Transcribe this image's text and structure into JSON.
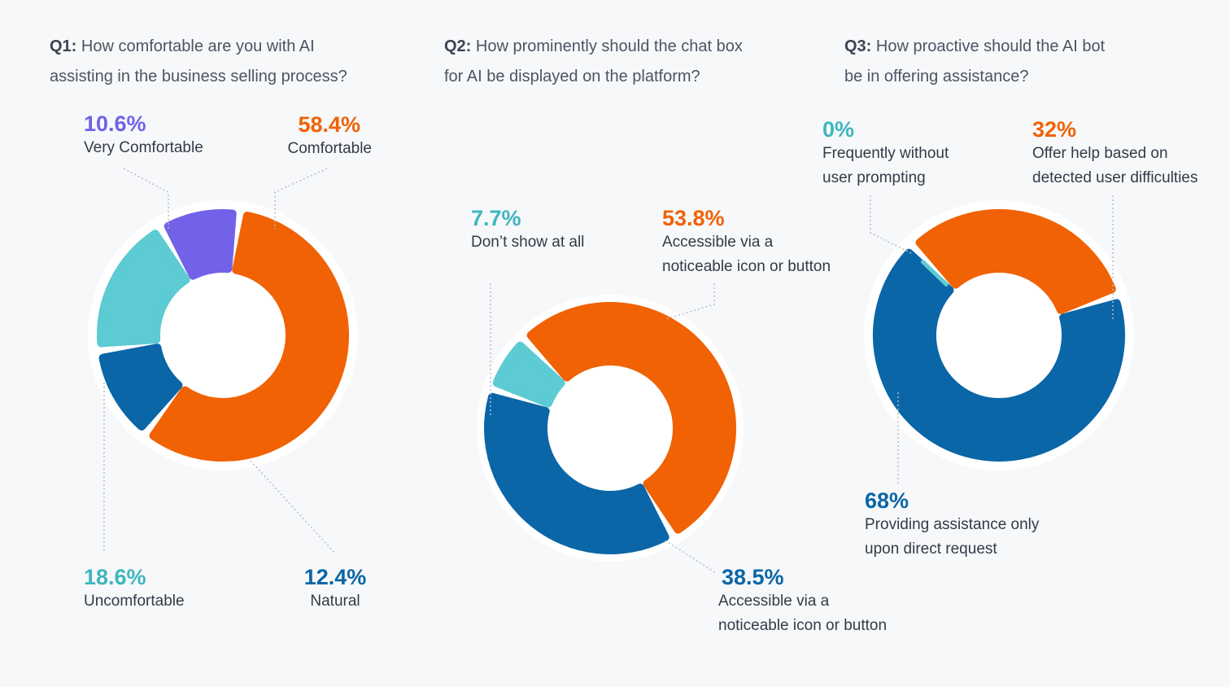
{
  "colors": {
    "orange": "#f06203",
    "blue": "#0a66a7",
    "teal": "#5ccbd3",
    "purple": "#7262e8",
    "ring": "#ffffff",
    "leader": "#b8bec7"
  },
  "questions": [
    {
      "number": "Q1:",
      "text": " How comfortable are you with AI\nassisting in the business selling process?"
    },
    {
      "number": "Q2:",
      "text": " How prominently should the chat box\nfor AI be displayed on the platform?"
    },
    {
      "number": "Q3:",
      "text": " How proactive should the AI bot\nbe in offering assistance?"
    }
  ],
  "chart_data": [
    {
      "type": "pie",
      "title": "Q1: How comfortable are you with AI assisting in the business selling process?",
      "series": [
        {
          "name": "Comfortable",
          "value": 58.4,
          "label": "58.4%",
          "color": "orange"
        },
        {
          "name": "Natural",
          "value": 12.4,
          "label": "12.4%",
          "color": "blue"
        },
        {
          "name": "Uncomfortable",
          "value": 18.6,
          "label": "18.6%",
          "color": "teal"
        },
        {
          "name": "Very Comfortable",
          "value": 10.6,
          "label": "10.6%",
          "color": "purple"
        }
      ]
    },
    {
      "type": "pie",
      "title": "Q2: How prominently should the chat box for AI be displayed on the platform?",
      "series": [
        {
          "name": "Accessible via a\nnoticeable icon or button",
          "value": 53.8,
          "label": "53.8%",
          "color": "orange"
        },
        {
          "name": "Accessible via a\nnoticeable icon or button",
          "value": 38.5,
          "label": "38.5%",
          "color": "blue"
        },
        {
          "name": "Don’t show at all",
          "value": 7.7,
          "label": "7.7%",
          "color": "teal"
        }
      ]
    },
    {
      "type": "pie",
      "title": "Q3: How proactive should the AI bot be in offering assistance?",
      "series": [
        {
          "name": "Offer help based on\ndetected user difficulties",
          "value": 32,
          "label": "32%",
          "color": "orange"
        },
        {
          "name": "Providing assistance only\nupon direct request",
          "value": 68,
          "label": "68%",
          "color": "blue"
        },
        {
          "name": "Frequently without\nuser prompting",
          "value": 0,
          "label": "0%",
          "color": "teal"
        }
      ]
    }
  ]
}
